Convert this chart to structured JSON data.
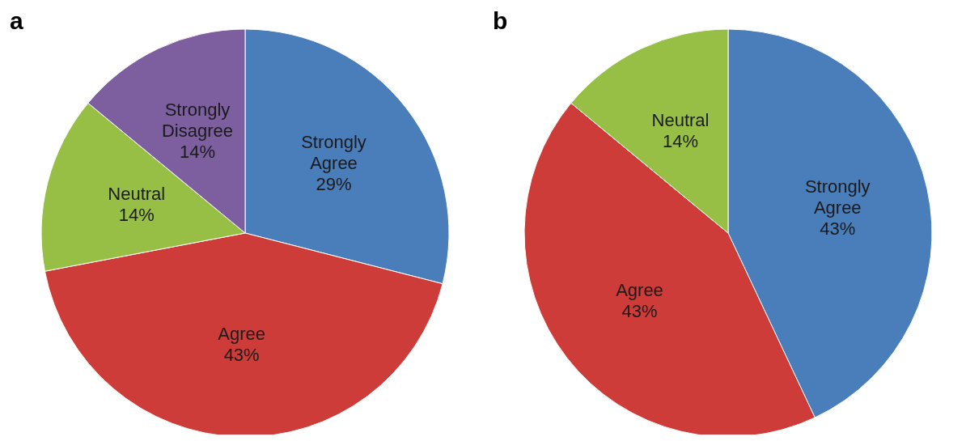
{
  "chart_data": [
    {
      "type": "pie",
      "title": "a",
      "categories": [
        "Strongly Agree",
        "Agree",
        "Neutral",
        "Strongly Disagree"
      ],
      "values": [
        29,
        43,
        14,
        14
      ],
      "colors": [
        "#4a7ebb",
        "#cd3c38",
        "#98bf45",
        "#7d5fa0"
      ],
      "value_labels": [
        "29%",
        "43%",
        "14%",
        "14%"
      ]
    },
    {
      "type": "pie",
      "title": "b",
      "categories": [
        "Strongly Agree",
        "Agree",
        "Neutral"
      ],
      "values": [
        43,
        43,
        14
      ],
      "colors": [
        "#4a7ebb",
        "#cd3c38",
        "#98bf45"
      ],
      "value_labels": [
        "43%",
        "43%",
        "14%"
      ]
    }
  ]
}
